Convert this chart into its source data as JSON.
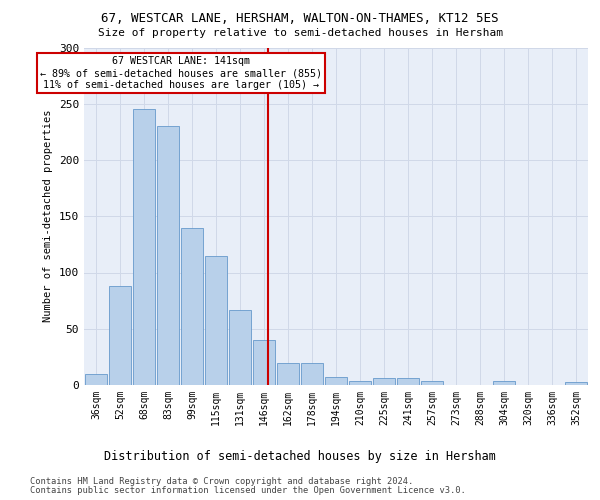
{
  "title": "67, WESTCAR LANE, HERSHAM, WALTON-ON-THAMES, KT12 5ES",
  "subtitle": "Size of property relative to semi-detached houses in Hersham",
  "xlabel_bottom": "Distribution of semi-detached houses by size in Hersham",
  "ylabel": "Number of semi-detached properties",
  "categories": [
    "36sqm",
    "52sqm",
    "68sqm",
    "83sqm",
    "99sqm",
    "115sqm",
    "131sqm",
    "146sqm",
    "162sqm",
    "178sqm",
    "194sqm",
    "210sqm",
    "225sqm",
    "241sqm",
    "257sqm",
    "273sqm",
    "288sqm",
    "304sqm",
    "320sqm",
    "336sqm",
    "352sqm"
  ],
  "values": [
    10,
    88,
    245,
    230,
    140,
    115,
    67,
    40,
    20,
    20,
    7,
    4,
    6,
    6,
    4,
    0,
    0,
    4,
    0,
    0,
    3
  ],
  "bar_color": "#b8d0ea",
  "bar_edge_color": "#6699cc",
  "property_label": "67 WESTCAR LANE: 141sqm",
  "pct_smaller": 89,
  "n_smaller": 855,
  "pct_larger": 11,
  "n_larger": 105,
  "vline_color": "#cc0000",
  "annotation_box_edge_color": "#cc0000",
  "grid_color": "#d0d8e8",
  "bg_color": "#e8eef8",
  "ylim": [
    0,
    300
  ],
  "footer1": "Contains HM Land Registry data © Crown copyright and database right 2024.",
  "footer2": "Contains public sector information licensed under the Open Government Licence v3.0."
}
